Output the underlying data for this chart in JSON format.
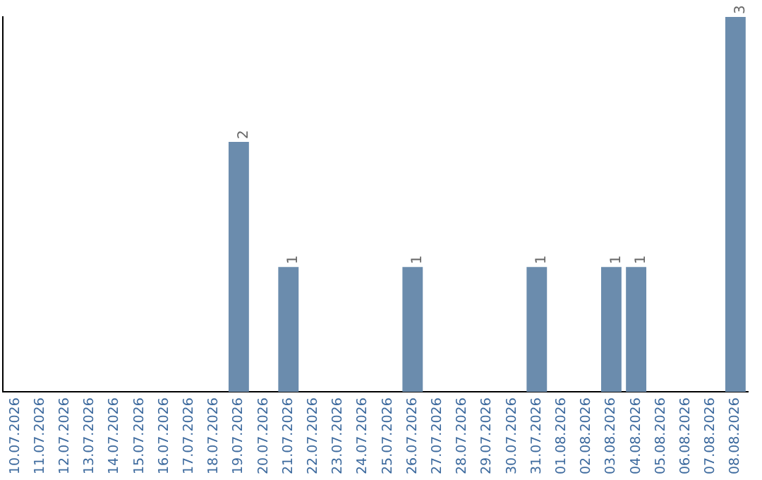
{
  "chart_data": {
    "type": "bar",
    "categories": [
      "10.07.2026",
      "11.07.2026",
      "12.07.2026",
      "13.07.2026",
      "14.07.2026",
      "15.07.2026",
      "16.07.2026",
      "17.07.2026",
      "18.07.2026",
      "19.07.2026",
      "20.07.2026",
      "21.07.2026",
      "22.07.2026",
      "23.07.2026",
      "24.07.2026",
      "25.07.2026",
      "26.07.2026",
      "27.07.2026",
      "28.07.2026",
      "29.07.2026",
      "30.07.2026",
      "31.07.2026",
      "01.08.2026",
      "02.08.2026",
      "03.08.2026",
      "04.08.2026",
      "05.08.2026",
      "06.08.2026",
      "07.08.2026",
      "08.08.2026"
    ],
    "values": [
      0,
      0,
      0,
      0,
      0,
      0,
      0,
      0,
      0,
      2,
      0,
      1,
      0,
      0,
      0,
      0,
      1,
      0,
      0,
      0,
      0,
      1,
      0,
      0,
      1,
      1,
      0,
      0,
      0,
      3
    ],
    "value_labels": [
      null,
      null,
      null,
      null,
      null,
      null,
      null,
      null,
      null,
      "2",
      null,
      "1",
      null,
      null,
      null,
      null,
      "1",
      null,
      null,
      null,
      null,
      "1",
      null,
      null,
      "1",
      "1",
      null,
      null,
      null,
      "3"
    ],
    "color": "#6b8cad",
    "grid": false,
    "legend": false,
    "tick_labels": "x"
  }
}
